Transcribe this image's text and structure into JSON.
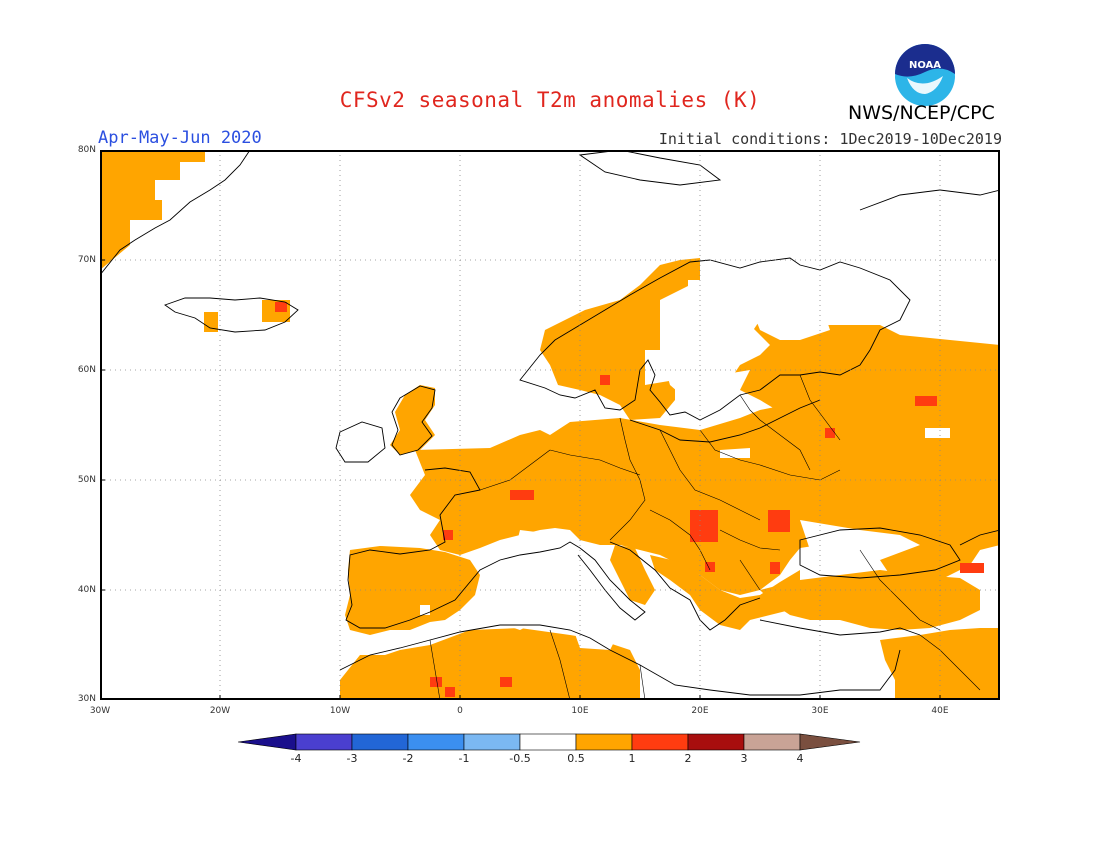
{
  "title": "CFSv2 seasonal T2m anomalies (K)",
  "agency": "NWS/NCEP/CPC",
  "logo_text": "NOAA",
  "period": "Apr-May-Jun 2020",
  "initial_conditions": "Initial conditions: 1Dec2019-10Dec2019",
  "map": {
    "lon_range": [
      -30,
      45
    ],
    "lat_range": [
      30,
      80
    ],
    "lat_labels": [
      "80N",
      "70N",
      "60N",
      "50N",
      "40N",
      "30N"
    ],
    "lon_labels": [
      "30W",
      "20W",
      "10W",
      "0",
      "10E",
      "20E",
      "30E",
      "40E"
    ],
    "anomaly_regions": [
      {
        "name": "greenland-east-coast",
        "class": "0.5-1"
      },
      {
        "name": "iceland-west",
        "class": "0.5-1"
      },
      {
        "name": "iceland-southeast",
        "class": "0.5-1"
      },
      {
        "name": "scandinavia-west",
        "class": "0.5-1"
      },
      {
        "name": "british-isles",
        "class": "0.5-1"
      },
      {
        "name": "western-central-europe",
        "class": "0.5-1"
      },
      {
        "name": "iberia",
        "class": "0.5-1"
      },
      {
        "name": "north-africa",
        "class": "0.5-1"
      },
      {
        "name": "eastern-europe-russia",
        "class": "0.5-1"
      },
      {
        "name": "balkans",
        "class": "0.5-1"
      },
      {
        "name": "turkey",
        "class": "0.5-1"
      },
      {
        "name": "middle-east",
        "class": "0.5-1"
      },
      {
        "name": "iceland-southeast-hot",
        "class": "1-2"
      },
      {
        "name": "france-central-hot",
        "class": "1-2"
      },
      {
        "name": "balkans-hot",
        "class": "1-2"
      },
      {
        "name": "romania-hot",
        "class": "1-2"
      },
      {
        "name": "caucasus-hot",
        "class": "1-2"
      },
      {
        "name": "algeria-hot",
        "class": "1-2"
      },
      {
        "name": "russia-hot",
        "class": "1-2"
      }
    ]
  },
  "colorbar": {
    "colors": [
      "#1a0f8c",
      "#4a3fcf",
      "#2266d6",
      "#3b8ff0",
      "#7bb8f2",
      "#ffffff",
      "#ffa500",
      "#ff3c10",
      "#a80e0e",
      "#c9a396",
      "#7a4f3f"
    ],
    "labels": [
      "-4",
      "-3",
      "-2",
      "-1",
      "-0.5",
      "0.5",
      "1",
      "2",
      "3",
      "4"
    ]
  }
}
